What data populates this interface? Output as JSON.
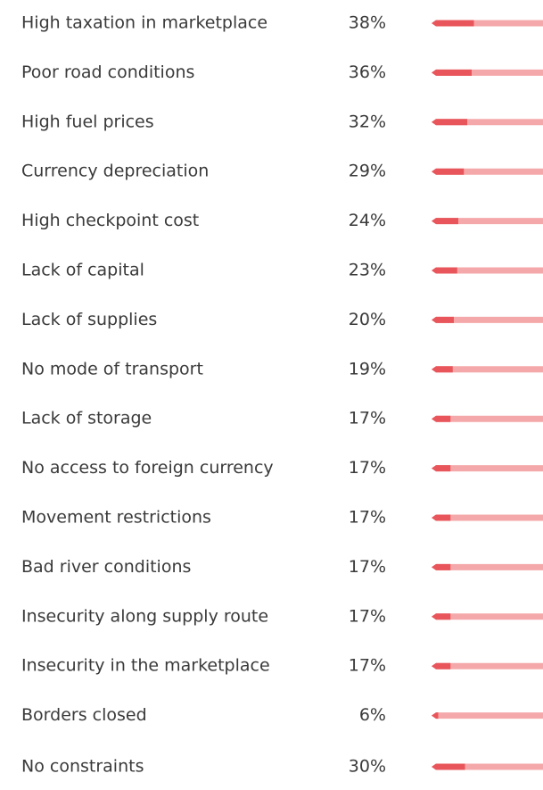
{
  "chart_data": {
    "type": "bar",
    "orientation": "horizontal",
    "categories": [
      "High taxation in marketplace",
      "Poor road conditions",
      "High fuel prices",
      "Currency depreciation",
      "High checkpoint cost",
      "Lack of capital",
      "Lack of supplies",
      "No mode of transport",
      "Lack of storage",
      "No access to foreign currency",
      "Movement restrictions",
      "Bad river conditions",
      "Insecurity along supply route",
      "Insecurity in the marketplace",
      "Borders closed",
      "No constraints"
    ],
    "values": [
      38,
      36,
      32,
      29,
      24,
      23,
      20,
      19,
      17,
      17,
      17,
      17,
      17,
      17,
      6,
      30
    ],
    "value_labels": [
      "38%",
      "36%",
      "32%",
      "29%",
      "24%",
      "23%",
      "20%",
      "19%",
      "17%",
      "17%",
      "17%",
      "17%",
      "17%",
      "17%",
      "6%",
      "30%"
    ],
    "xlim": [
      0,
      100
    ],
    "color": "#e8555a",
    "track_color": "#f5a8aa"
  }
}
